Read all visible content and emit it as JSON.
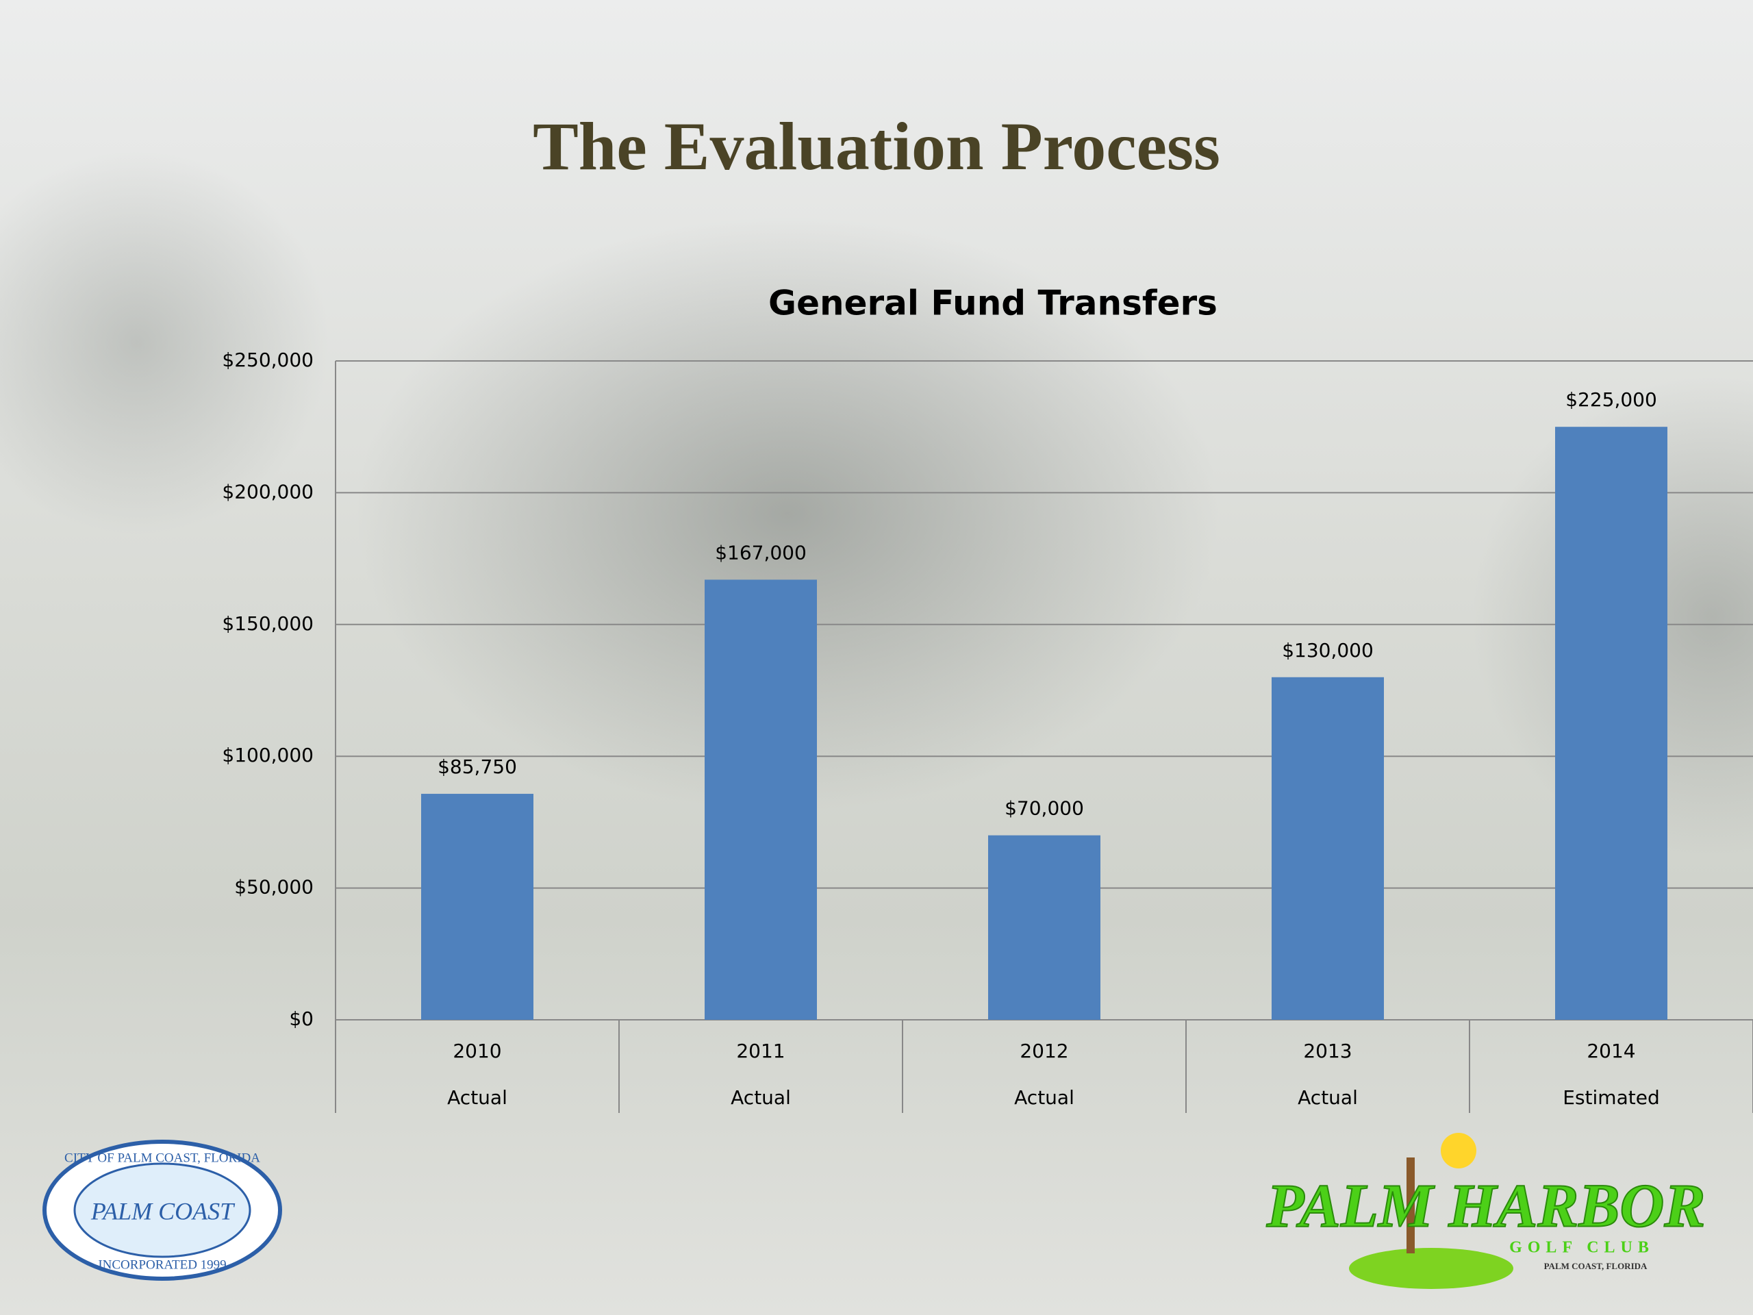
{
  "slide_title": "The Evaluation Process",
  "chart_data": {
    "type": "bar",
    "title": "General Fund Transfers",
    "categories": [
      "2010",
      "2011",
      "2012",
      "2013",
      "2014"
    ],
    "category_sublabels": [
      "Actual",
      "Actual",
      "Actual",
      "Actual",
      "Estimated"
    ],
    "values": [
      85750,
      167000,
      70000,
      130000,
      225000
    ],
    "value_labels": [
      "$85,750",
      "$167,000",
      "$70,000",
      "$130,000",
      "$225,000"
    ],
    "color": "#4f81bd",
    "ylim": [
      0,
      250000
    ],
    "yticks": [
      {
        "value": 0,
        "label": "$0"
      },
      {
        "value": 50000,
        "label": "$50,000"
      },
      {
        "value": 100000,
        "label": "$100,000"
      },
      {
        "value": 150000,
        "label": "$150,000"
      },
      {
        "value": 200000,
        "label": "$200,000"
      },
      {
        "value": 250000,
        "label": "$250,000"
      }
    ],
    "grid": true
  },
  "logos": {
    "left": {
      "ring_top": "CITY OF PALM COAST, FLORIDA",
      "name": "PALM COAST",
      "ring_bottom": "INCORPORATED 1999"
    },
    "right": {
      "name": "PALM HARBOR",
      "subtitle": "GOLF CLUB",
      "location": "PALM COAST, FLORIDA"
    }
  }
}
